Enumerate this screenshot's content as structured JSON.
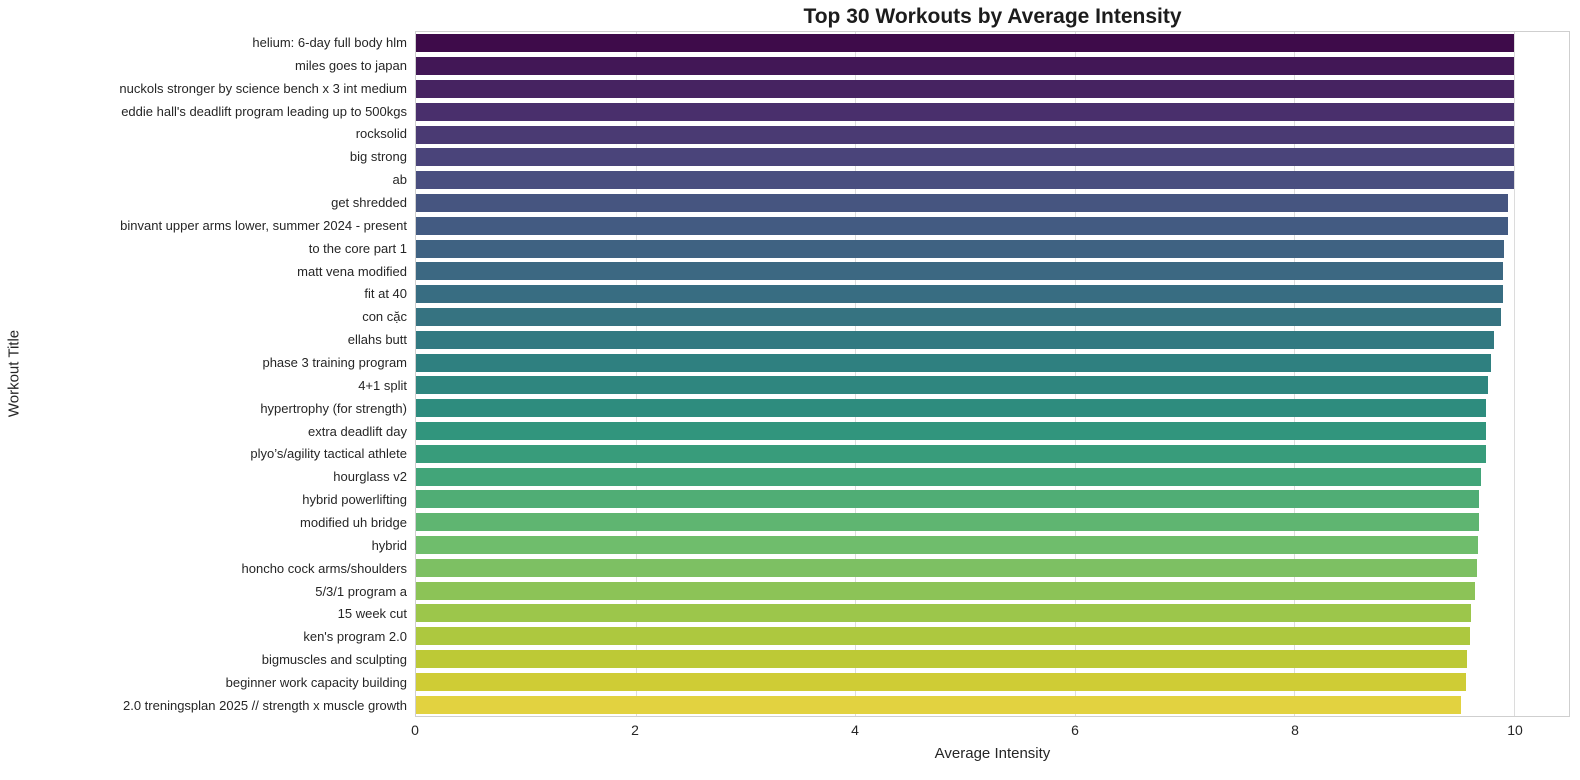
{
  "chart_data": {
    "type": "bar",
    "orientation": "horizontal",
    "title": "Top 30 Workouts by Average Intensity",
    "xlabel": "Average Intensity",
    "ylabel": "Workout Title",
    "xlim": [
      0,
      10.5
    ],
    "xticks": [
      0,
      2,
      4,
      6,
      8,
      10
    ],
    "grid": "vertical",
    "legend": "none",
    "categories": [
      "helium: 6-day full body hlm",
      "miles goes to japan",
      "nuckols stronger by science bench x 3 int medium",
      "eddie hall's deadlift program leading up to 500kgs",
      "rocksolid",
      "big strong",
      "ab",
      "get shredded",
      "binvant upper arms lower, summer 2024 - present",
      "to the core part 1",
      "matt vena modified",
      "fit at 40",
      "con cặc",
      "ellahs butt",
      "phase 3 training program",
      "4+1 split",
      "hypertrophy (for strength)",
      "extra deadlift day",
      "plyo’s/agility tactical athlete",
      "hourglass v2",
      "hybrid powerlifting",
      "modified uh bridge",
      "hybrid",
      "honcho cock arms/shoulders",
      "5/3/1 program a",
      "15 week cut",
      "ken's program 2.0",
      "bigmuscles and sculpting",
      "beginner work capacity building",
      "2.0 treningsplan 2025 // strength x muscle growth"
    ],
    "values": [
      10.0,
      10.0,
      10.0,
      10.0,
      10.0,
      10.0,
      10.0,
      9.94,
      9.94,
      9.91,
      9.9,
      9.9,
      9.88,
      9.82,
      9.79,
      9.76,
      9.74,
      9.74,
      9.74,
      9.7,
      9.68,
      9.68,
      9.67,
      9.66,
      9.64,
      9.61,
      9.6,
      9.57,
      9.56,
      9.52
    ],
    "palette_viridis": [
      "#440154",
      "#460D60",
      "#47196B",
      "#482576",
      "#46307D",
      "#433B83",
      "#404688",
      "#3C508A",
      "#38598C",
      "#34628D",
      "#306B8E",
      "#2C738E",
      "#297B8E",
      "#25848E",
      "#228D8D",
      "#20958B",
      "#1E9C89",
      "#21A585",
      "#27AD81",
      "#31B57B",
      "#40BC72",
      "#51C369",
      "#63CA5F",
      "#76D053",
      "#8CD545",
      "#A3DA37",
      "#BBDF28",
      "#D2E21D",
      "#E8E41C",
      "#FDE725"
    ],
    "bar_saturation": 0.75
  },
  "colors": {
    "background": "#ffffff",
    "title_text": "#1c1c1c",
    "axis_text": "#262626",
    "gridline": "#dcdcdc",
    "spine": "#cfcfcf"
  }
}
